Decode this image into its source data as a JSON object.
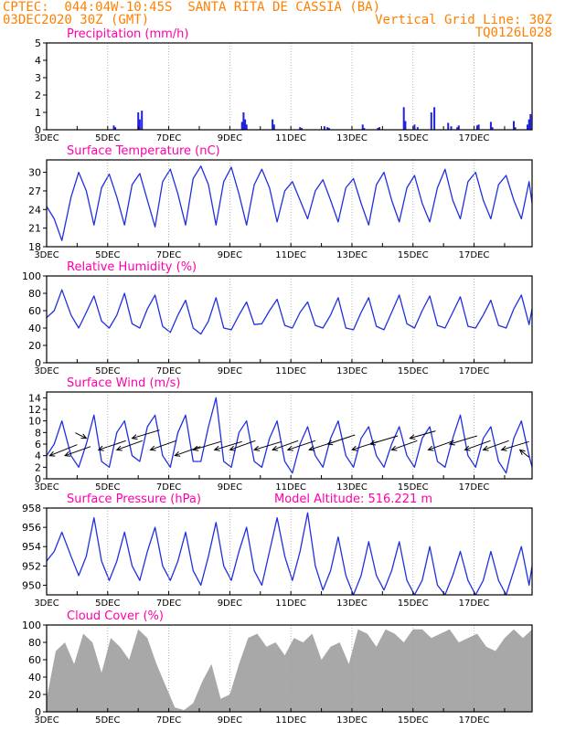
{
  "header": {
    "line1": "CPTEC:  044:04W-10:45S  SANTA RITA DE CASSIA (BA)",
    "line2": "03DEC2020 30Z (GMT)",
    "grid_note": "Vertical Grid Line: 30Z",
    "code": "TQ0126L028"
  },
  "colors": {
    "header": "#ff8000",
    "panel_title": "#ff00aa",
    "line": "#2030e0",
    "bar": "#2020e0",
    "cloud": "#a8a8a8",
    "grid": "#999999",
    "arrow": "#000000"
  },
  "x_tick_labels": [
    "3DEC",
    "5DEC",
    "7DEC",
    "9DEC",
    "11DEC",
    "13DEC",
    "15DEC",
    "17DEC"
  ],
  "x_tick_days": [
    0,
    2,
    4,
    6,
    8,
    10,
    12,
    14
  ],
  "x_range_days": [
    0,
    15.9
  ],
  "chart_data": [
    {
      "id": "precip",
      "type": "bar",
      "title": "Precipitation (mm/h)",
      "ylim": [
        0,
        5
      ],
      "yticks": [
        0,
        1,
        2,
        3,
        4,
        5
      ],
      "x_days": [
        2.2,
        2.25,
        3.0,
        3.05,
        3.12,
        6.4,
        6.45,
        6.5,
        6.55,
        7.4,
        7.45,
        8.3,
        8.35,
        9.1,
        9.2,
        9.25,
        10.35,
        10.4,
        10.85,
        10.9,
        11.7,
        11.75,
        12.05,
        12.15,
        12.6,
        12.7,
        13.15,
        13.25,
        13.45,
        13.5,
        14.1,
        14.15,
        14.55,
        14.6,
        15.3,
        15.35,
        15.75,
        15.8,
        15.85
      ],
      "values": [
        0.25,
        0.15,
        1.0,
        0.6,
        1.1,
        0.45,
        1.0,
        0.6,
        0.3,
        0.6,
        0.3,
        0.15,
        0.1,
        0.2,
        0.15,
        0.1,
        0.3,
        0.1,
        0.1,
        0.15,
        1.3,
        0.5,
        0.3,
        0.15,
        1.0,
        1.3,
        0.4,
        0.2,
        0.15,
        0.25,
        0.25,
        0.3,
        0.45,
        0.15,
        0.5,
        0.15,
        0.3,
        0.6,
        0.9
      ]
    },
    {
      "id": "temp",
      "type": "line",
      "title": "Surface Temperature (nC)",
      "ylim": [
        18,
        32
      ],
      "yticks": [
        18,
        21,
        24,
        27,
        30
      ],
      "x_days": [
        0,
        0.25,
        0.5,
        0.8,
        1.05,
        1.3,
        1.55,
        1.8,
        2.05,
        2.3,
        2.55,
        2.8,
        3.05,
        3.3,
        3.55,
        3.8,
        4.05,
        4.3,
        4.55,
        4.8,
        5.05,
        5.3,
        5.55,
        5.8,
        6.05,
        6.3,
        6.55,
        6.8,
        7.05,
        7.3,
        7.55,
        7.8,
        8.05,
        8.3,
        8.55,
        8.8,
        9.05,
        9.3,
        9.55,
        9.8,
        10.05,
        10.3,
        10.55,
        10.8,
        11.05,
        11.3,
        11.55,
        11.8,
        12.05,
        12.3,
        12.55,
        12.8,
        13.05,
        13.3,
        13.55,
        13.8,
        14.05,
        14.3,
        14.55,
        14.8,
        15.05,
        15.3,
        15.55,
        15.8,
        15.9
      ],
      "values": [
        24.5,
        22.5,
        19.0,
        26.0,
        30.0,
        27.0,
        21.5,
        27.5,
        29.7,
        26.0,
        21.5,
        28.0,
        29.8,
        25.5,
        21.2,
        28.5,
        30.5,
        26.5,
        21.5,
        29.0,
        31.0,
        28.0,
        21.5,
        28.5,
        30.8,
        26.5,
        21.5,
        28.0,
        30.5,
        27.5,
        22.0,
        27.0,
        28.5,
        25.5,
        22.5,
        27.0,
        28.8,
        25.5,
        22.0,
        27.5,
        29.0,
        25.0,
        21.5,
        28.0,
        30.0,
        25.5,
        22.0,
        27.5,
        29.5,
        25.0,
        22.0,
        27.5,
        30.5,
        25.5,
        22.5,
        28.5,
        30.0,
        25.5,
        22.5,
        28.0,
        29.5,
        25.5,
        22.5,
        28.5,
        25.0
      ]
    },
    {
      "id": "rh",
      "type": "line",
      "title": "Relative Humidity (%)",
      "ylim": [
        0,
        100
      ],
      "yticks": [
        0,
        20,
        40,
        60,
        80,
        100
      ],
      "x_days": [
        0,
        0.25,
        0.5,
        0.8,
        1.05,
        1.3,
        1.55,
        1.8,
        2.05,
        2.3,
        2.55,
        2.8,
        3.05,
        3.3,
        3.55,
        3.8,
        4.05,
        4.3,
        4.55,
        4.8,
        5.05,
        5.3,
        5.55,
        5.8,
        6.05,
        6.3,
        6.55,
        6.8,
        7.05,
        7.3,
        7.55,
        7.8,
        8.05,
        8.3,
        8.55,
        8.8,
        9.05,
        9.3,
        9.55,
        9.8,
        10.05,
        10.3,
        10.55,
        10.8,
        11.05,
        11.3,
        11.55,
        11.8,
        12.05,
        12.3,
        12.55,
        12.8,
        13.05,
        13.3,
        13.55,
        13.8,
        14.05,
        14.3,
        14.55,
        14.8,
        15.05,
        15.3,
        15.55,
        15.8,
        15.9
      ],
      "values": [
        52,
        60,
        84,
        55,
        40,
        58,
        77,
        48,
        40,
        55,
        80,
        45,
        40,
        62,
        78,
        42,
        35,
        55,
        72,
        40,
        33,
        48,
        75,
        40,
        38,
        55,
        70,
        44,
        45,
        60,
        73,
        43,
        40,
        58,
        70,
        43,
        40,
        55,
        75,
        40,
        38,
        58,
        75,
        42,
        38,
        58,
        78,
        45,
        40,
        60,
        77,
        43,
        40,
        58,
        76,
        42,
        40,
        55,
        72,
        43,
        40,
        62,
        78,
        44,
        62
      ]
    },
    {
      "id": "wind",
      "type": "line",
      "title": "Surface Wind (m/s)",
      "ylim": [
        0,
        15
      ],
      "yticks": [
        0,
        2,
        4,
        6,
        8,
        10,
        12,
        14
      ],
      "x_days": [
        0,
        0.25,
        0.5,
        0.8,
        1.05,
        1.3,
        1.55,
        1.8,
        2.05,
        2.3,
        2.55,
        2.8,
        3.05,
        3.3,
        3.55,
        3.8,
        4.05,
        4.3,
        4.55,
        4.8,
        5.05,
        5.3,
        5.55,
        5.8,
        6.05,
        6.3,
        6.55,
        6.8,
        7.05,
        7.3,
        7.55,
        7.8,
        8.05,
        8.3,
        8.55,
        8.8,
        9.05,
        9.3,
        9.55,
        9.8,
        10.05,
        10.3,
        10.55,
        10.8,
        11.05,
        11.3,
        11.55,
        11.8,
        12.05,
        12.3,
        12.55,
        12.8,
        13.05,
        13.3,
        13.55,
        13.8,
        14.05,
        14.3,
        14.55,
        14.8,
        15.05,
        15.3,
        15.55,
        15.8,
        15.9
      ],
      "values": [
        4,
        6,
        10,
        4,
        2,
        6,
        11,
        3,
        2,
        8,
        10,
        4,
        3,
        9,
        11,
        4,
        2,
        8,
        11,
        3,
        3,
        9,
        14,
        3,
        2,
        8,
        10,
        3,
        2,
        7,
        10,
        3,
        1,
        6,
        9,
        4,
        2,
        7,
        10,
        4,
        2,
        7,
        9,
        4,
        2,
        6,
        9,
        4,
        2,
        7,
        9,
        3,
        2,
        7,
        11,
        4,
        2,
        7,
        9,
        3,
        1,
        7,
        10,
        4,
        2
      ]
    },
    {
      "id": "pres",
      "type": "line",
      "title": "Surface Pressure (hPa)",
      "subtitle": "Model Altitude: 516.221 m",
      "ylim": [
        949,
        958
      ],
      "yticks": [
        950,
        952,
        954,
        956,
        958
      ],
      "x_days": [
        0,
        0.25,
        0.5,
        0.8,
        1.05,
        1.3,
        1.55,
        1.8,
        2.05,
        2.3,
        2.55,
        2.8,
        3.05,
        3.3,
        3.55,
        3.8,
        4.05,
        4.3,
        4.55,
        4.8,
        5.05,
        5.3,
        5.55,
        5.8,
        6.05,
        6.3,
        6.55,
        6.8,
        7.05,
        7.3,
        7.55,
        7.8,
        8.05,
        8.3,
        8.55,
        8.8,
        9.05,
        9.3,
        9.55,
        9.8,
        10.05,
        10.3,
        10.55,
        10.8,
        11.05,
        11.3,
        11.55,
        11.8,
        12.05,
        12.3,
        12.55,
        12.8,
        13.05,
        13.3,
        13.55,
        13.8,
        14.05,
        14.3,
        14.55,
        14.8,
        15.05,
        15.3,
        15.55,
        15.8,
        15.9
      ],
      "values": [
        952.5,
        953.5,
        955.5,
        953.0,
        951.0,
        953.0,
        957.0,
        952.5,
        950.5,
        952.5,
        955.5,
        952.0,
        950.5,
        953.5,
        956.0,
        952.0,
        950.5,
        952.5,
        955.5,
        951.5,
        950.0,
        953.0,
        956.5,
        952.0,
        950.5,
        953.5,
        956.0,
        951.5,
        950.0,
        953.5,
        957.0,
        953.0,
        950.5,
        953.5,
        957.5,
        952.0,
        949.5,
        951.5,
        955.0,
        951.0,
        949.0,
        951.0,
        954.5,
        951.0,
        949.5,
        951.5,
        954.5,
        950.5,
        949.0,
        950.5,
        954.0,
        950.0,
        949.0,
        951.0,
        953.5,
        950.5,
        949.0,
        950.5,
        953.5,
        950.5,
        949.0,
        951.5,
        954.0,
        950.0,
        952.0
      ]
    },
    {
      "id": "cloud",
      "type": "area",
      "title": "Cloud Cover (%)",
      "ylim": [
        0,
        100
      ],
      "yticks": [
        0,
        20,
        40,
        60,
        80,
        100
      ],
      "x_days": [
        0,
        0.3,
        0.6,
        0.9,
        1.2,
        1.5,
        1.8,
        2.1,
        2.4,
        2.7,
        3.0,
        3.3,
        3.6,
        3.9,
        4.2,
        4.5,
        4.8,
        5.1,
        5.4,
        5.7,
        6.0,
        6.3,
        6.6,
        6.9,
        7.2,
        7.5,
        7.8,
        8.1,
        8.4,
        8.7,
        9.0,
        9.3,
        9.6,
        9.9,
        10.2,
        10.5,
        10.8,
        11.1,
        11.4,
        11.7,
        12.0,
        12.3,
        12.6,
        12.9,
        13.2,
        13.5,
        13.8,
        14.1,
        14.4,
        14.7,
        15.0,
        15.3,
        15.6,
        15.9
      ],
      "values": [
        15,
        70,
        80,
        55,
        90,
        80,
        45,
        85,
        75,
        60,
        95,
        85,
        55,
        30,
        5,
        2,
        10,
        35,
        55,
        15,
        20,
        55,
        85,
        90,
        75,
        80,
        65,
        85,
        80,
        90,
        60,
        75,
        80,
        55,
        95,
        90,
        75,
        95,
        90,
        80,
        95,
        95,
        85,
        90,
        95,
        80,
        85,
        90,
        75,
        70,
        85,
        95,
        85,
        95
      ]
    }
  ],
  "wind_arrows": {
    "x_days": [
      0.1,
      0.6,
      1.3,
      1.7,
      2.3,
      2.8,
      3.4,
      4.2,
      4.8,
      5.5,
      6.0,
      6.8,
      7.4,
      7.9,
      8.6,
      9.2,
      10.0,
      10.6,
      11.3,
      11.9,
      12.5,
      13.2,
      13.7,
      14.3,
      14.9,
      15.5
    ],
    "y_values": [
      4,
      4,
      7,
      5,
      5,
      7,
      5,
      4,
      5,
      5,
      5,
      5,
      5,
      5,
      5,
      6,
      5,
      6,
      5,
      7,
      5,
      6,
      5,
      5,
      5,
      5
    ],
    "dx": [
      30,
      28,
      -12,
      30,
      28,
      30,
      28,
      28,
      30,
      30,
      28,
      30,
      28,
      30,
      28,
      30,
      28,
      30,
      28,
      28,
      28,
      30,
      28,
      28,
      30,
      10
    ],
    "dy": [
      -12,
      -10,
      -6,
      -10,
      -10,
      -9,
      -10,
      -10,
      -9,
      -9,
      -10,
      -9,
      -10,
      -10,
      -9,
      -10,
      -9,
      -9,
      -10,
      -8,
      -10,
      -9,
      -10,
      -10,
      -9,
      8
    ]
  }
}
